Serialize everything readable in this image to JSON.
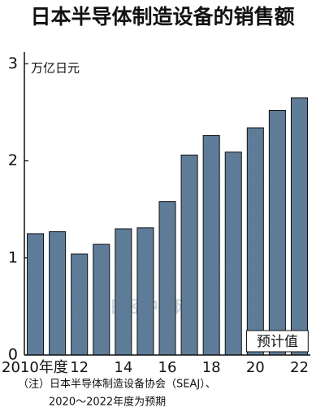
{
  "chart_data": {
    "type": "bar",
    "title": "日本半导体制造设备的销售额",
    "y_label": "万亿日元",
    "categories": [
      "2010年度",
      null,
      "12",
      null,
      "14",
      null,
      "16",
      null,
      "18",
      null,
      "20",
      null,
      "22"
    ],
    "values": [
      1.25,
      1.27,
      1.04,
      1.14,
      1.3,
      1.31,
      1.58,
      2.06,
      2.26,
      2.09,
      2.34,
      2.52,
      2.65
    ],
    "color": "#62809c",
    "ylim": [
      0,
      3.12
    ],
    "yticks": [
      0,
      1,
      2,
      3
    ],
    "grid": false,
    "annotation": "预计值",
    "watermark": "日经中文网",
    "notes": [
      "（注）日本半导体制造设备协会（SEAJ）、",
      "2020～2022年度为预期"
    ]
  }
}
